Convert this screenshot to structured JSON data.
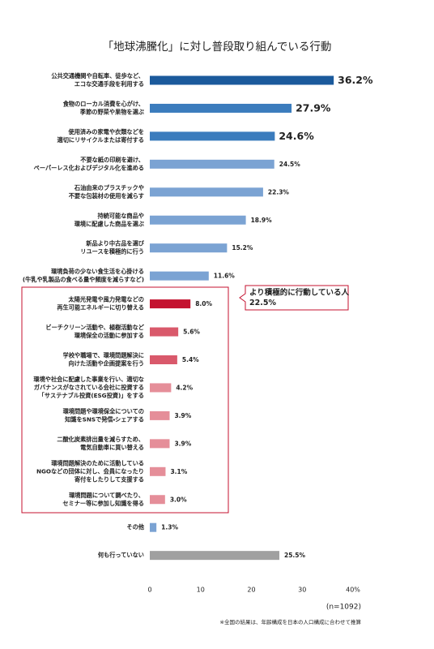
{
  "chart_data": {
    "type": "bar",
    "orientation": "horizontal",
    "title": "「地球沸騰化」に対し普段取り組んでいる行動",
    "categories": [
      [
        "公共交通機関や自転車、徒歩など、",
        "エコな交通手段を利用する"
      ],
      [
        "食物のローカル消費を心がけ、",
        "季節の野菜や果物を選ぶ"
      ],
      [
        "使用済みの家電や衣類などを",
        "適切にリサイクルまたは寄付する"
      ],
      [
        "不要な紙の印刷を避け、",
        "ペーパーレス化およびデジタル化を進める"
      ],
      [
        "石油由来のプラスチックや",
        "不要な包装材の使用を減らす"
      ],
      [
        "持続可能な商品や",
        "環境に配慮した商品を選ぶ"
      ],
      [
        "新品より中古品を選び",
        "リユースを積極的に行う"
      ],
      [
        "環境負荷の少ない食生活を心掛ける",
        "(牛乳や乳製品の食べる量や頻度を減らすなど)"
      ],
      [
        "太陽光発電や風力発電などの",
        "再生可能エネルギーに切り替える"
      ],
      [
        "ビーチクリーン活動や、植樹活動など",
        "環境保全の活動に参加する"
      ],
      [
        "学校や職場で、環境問題解決に",
        "向けた活動や企画提案を行う"
      ],
      [
        "環境や社会に配慮した事業を行い、適切な",
        "ガバナンスがなされている会社に投資する",
        "「サステナブル投資(ESG投資)」をする"
      ],
      [
        "環境問題や環境保全についての",
        "知識をSNSで発信・シェアする"
      ],
      [
        "二酸化炭素排出量を減らすため、",
        "電気自動車に買い替える"
      ],
      [
        "環境問題解決のために活動している",
        "NGOなどの団体に対し、会員になったり",
        "寄付をしたりして支援する"
      ],
      [
        "環境問題について調べたり、",
        "セミナー等に参加し知識を得る"
      ],
      [
        "その他"
      ],
      [
        "何も行っていない"
      ]
    ],
    "values": [
      36.2,
      27.9,
      24.6,
      24.5,
      22.3,
      18.9,
      15.2,
      11.6,
      8.0,
      5.6,
      5.4,
      4.2,
      3.9,
      3.9,
      3.1,
      3.0,
      1.3,
      25.5
    ],
    "value_labels": [
      "36.2%",
      "27.9%",
      "24.6%",
      "24.5%",
      "22.3%",
      "18.9%",
      "15.2%",
      "11.6%",
      "8.0%",
      "5.6%",
      "5.4%",
      "4.2%",
      "3.9%",
      "3.9%",
      "3.1%",
      "3.0%",
      "1.3%",
      "25.5%"
    ],
    "colors": [
      "#1b5a9c",
      "#3b7cbd",
      "#3b7cbd",
      "#7ba3d3",
      "#7ba3d3",
      "#7ba3d3",
      "#7ba3d3",
      "#7ba3d3",
      "#c4122f",
      "#d9596b",
      "#d9596b",
      "#e58e99",
      "#e58e99",
      "#e58e99",
      "#e58e99",
      "#e58e99",
      "#7ba3d3",
      "#a0a0a0"
    ],
    "xlim": [
      0,
      40
    ],
    "xticks": [
      0,
      10,
      20,
      30,
      {
        "value": 40,
        "label": "40%"
      }
    ],
    "grid": false,
    "annotation": {
      "lines": [
        "より積極的に行動している人",
        "22.5%"
      ],
      "color": "#c4122f"
    },
    "sample_size": "(n=1092)",
    "footnote": "※全国の結果は、年齢構成を日本の人口構成に合わせて推算"
  }
}
